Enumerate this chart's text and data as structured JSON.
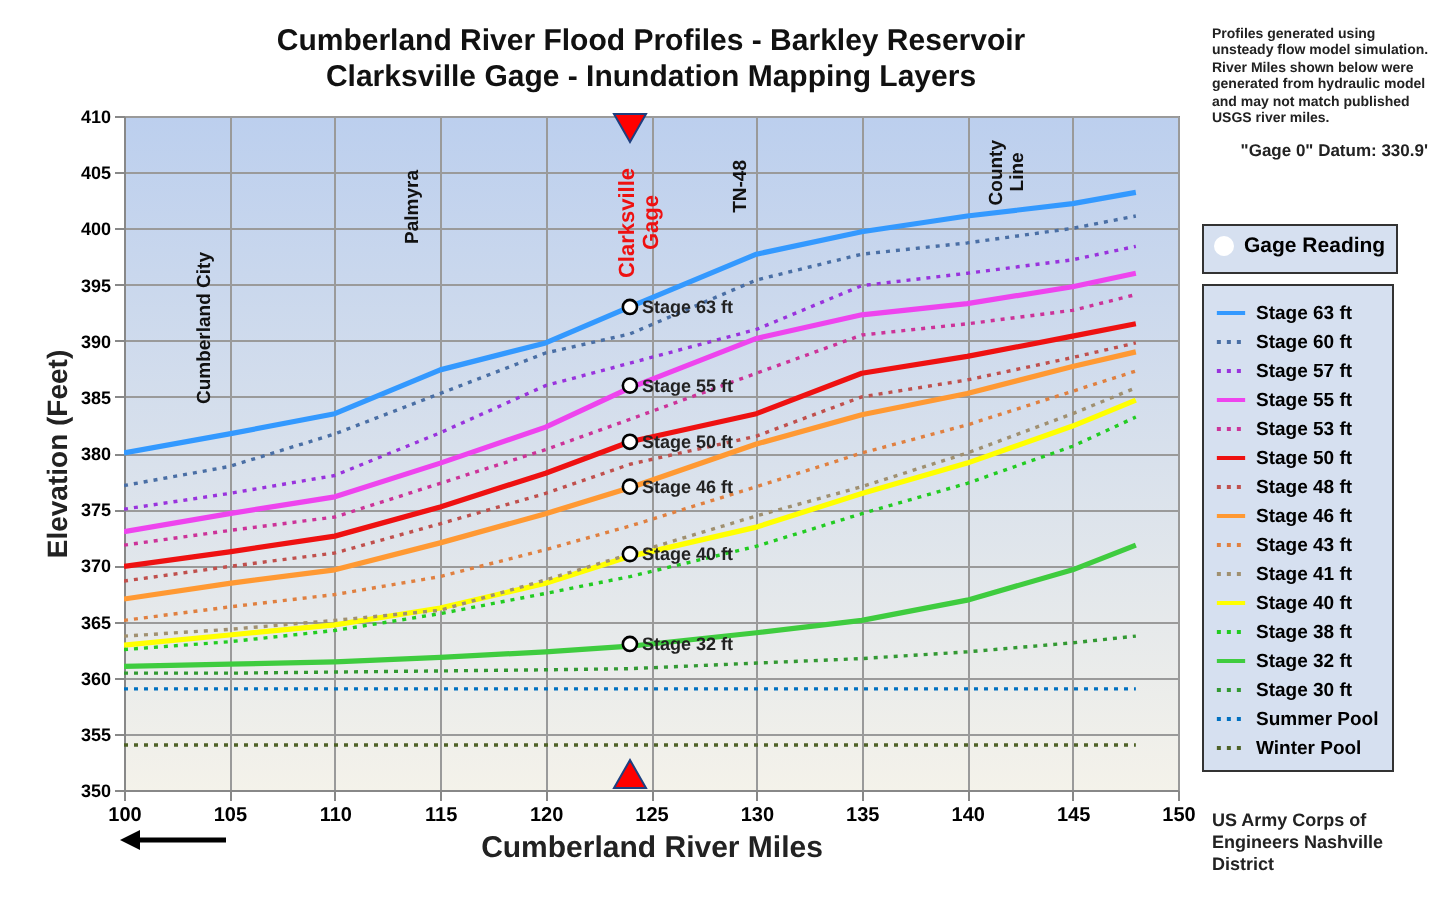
{
  "chart_data": {
    "type": "line",
    "title": "Cumberland River Flood Profiles - Barkley Reservoir",
    "subtitle": "Clarksville Gage - Inundation Mapping Layers",
    "xlabel": "Cumberland River Miles",
    "ylabel": "Elevation (Feet)",
    "x": [
      100,
      105,
      110,
      115,
      120,
      124,
      130,
      135,
      140,
      145,
      148
    ],
    "xlim": [
      100,
      150
    ],
    "xticks": [
      100,
      105,
      110,
      115,
      120,
      125,
      130,
      135,
      140,
      145,
      150
    ],
    "ylim": [
      350,
      410
    ],
    "yticks": [
      350,
      355,
      360,
      365,
      370,
      375,
      380,
      385,
      390,
      395,
      400,
      405,
      410
    ],
    "grid": true,
    "legend": "right",
    "series": [
      {
        "name": "Gage Reading",
        "type": "scatter",
        "marker": "circle",
        "color": "#000000",
        "x": [
          124,
          124,
          124,
          124,
          124,
          124
        ],
        "values": [
          393,
          386,
          381,
          377,
          371,
          363
        ],
        "value_labels": [
          "Stage 63 ft",
          "Stage 55 ft",
          "Stage 50 ft",
          "Stage 46 ft",
          "Stage 40 ft",
          "Stage 32 ft"
        ]
      },
      {
        "name": "Stage 63 ft",
        "color": "#3399ff",
        "line_style": "solid",
        "values": [
          380,
          381.7,
          383.5,
          387.4,
          389.8,
          393,
          397.7,
          399.7,
          401.1,
          402.2,
          403.2
        ]
      },
      {
        "name": "Stage 60 ft",
        "color": "#4a6fa5",
        "line_style": "dotted",
        "values": [
          377.1,
          378.8,
          381.7,
          385.3,
          388.9,
          390.6,
          395.4,
          397.7,
          398.7,
          400,
          401.1
        ]
      },
      {
        "name": "Stage 57 ft",
        "color": "#9933dd",
        "line_style": "dotted",
        "values": [
          375,
          376.4,
          378,
          381.8,
          386,
          388,
          391,
          394.9,
          396,
          397.2,
          398.4
        ]
      },
      {
        "name": "Stage 55 ft",
        "color": "#ee44ee",
        "line_style": "solid",
        "values": [
          373,
          374.6,
          376.1,
          379.1,
          382.3,
          385.8,
          390.2,
          392.3,
          393.3,
          394.8,
          396
        ]
      },
      {
        "name": "Stage 53 ft",
        "color": "#cc3399",
        "line_style": "dotted",
        "values": [
          371.8,
          373.1,
          374.3,
          377.3,
          380.3,
          383,
          387.1,
          390.5,
          391.5,
          392.7,
          394.1
        ]
      },
      {
        "name": "Stage 50 ft",
        "color": "#ee1111",
        "line_style": "solid",
        "values": [
          369.9,
          371.2,
          372.6,
          375.2,
          378.2,
          381,
          383.5,
          387.1,
          388.6,
          390.4,
          391.5
        ]
      },
      {
        "name": "Stage 48 ft",
        "color": "#c0504d",
        "line_style": "dotted",
        "values": [
          368.6,
          369.9,
          371.1,
          373.7,
          376.4,
          379,
          381.5,
          385,
          386.5,
          388.5,
          389.8
        ]
      },
      {
        "name": "Stage 46 ft",
        "color": "#ff9933",
        "line_style": "solid",
        "values": [
          367,
          368.4,
          369.6,
          372,
          374.6,
          376.9,
          380.8,
          383.4,
          385.3,
          387.7,
          389
        ]
      },
      {
        "name": "Stage 43 ft",
        "color": "#e08040",
        "line_style": "dotted",
        "values": [
          365.1,
          366.3,
          367.4,
          369,
          371.4,
          373.5,
          377,
          380,
          382.5,
          385.5,
          387.3
        ]
      },
      {
        "name": "Stage 41 ft",
        "color": "#a09070",
        "line_style": "dotted",
        "values": [
          363.7,
          364.3,
          365.1,
          366,
          368.7,
          371,
          374.4,
          377,
          380,
          383.5,
          385.8
        ]
      },
      {
        "name": "Stage 40 ft",
        "color": "#ffff00",
        "line_style": "solid",
        "values": [
          362.9,
          363.8,
          364.7,
          366.2,
          368.4,
          370.8,
          373.4,
          376.4,
          379.1,
          382.4,
          384.7
        ]
      },
      {
        "name": "Stage 38 ft",
        "color": "#22cc22",
        "line_style": "dotted",
        "values": [
          362.5,
          363.2,
          364.2,
          365.7,
          367.5,
          369,
          371.7,
          374.6,
          377.3,
          380.6,
          383.2
        ]
      },
      {
        "name": "Stage 32 ft",
        "color": "#3fcc3f",
        "line_style": "solid",
        "values": [
          361,
          361.2,
          361.4,
          361.8,
          362.3,
          362.8,
          364,
          365.1,
          366.9,
          369.6,
          371.8
        ]
      },
      {
        "name": "Stage 30 ft",
        "color": "#339933",
        "line_style": "dotted",
        "values": [
          360.4,
          360.4,
          360.5,
          360.6,
          360.7,
          360.8,
          361.3,
          361.7,
          362.3,
          363.1,
          363.7
        ]
      },
      {
        "name": "Summer Pool",
        "color": "#0070c0",
        "line_style": "dotted",
        "x": [
          100,
          148
        ],
        "values": [
          359,
          359
        ]
      },
      {
        "name": "Winter Pool",
        "color": "#4f6228",
        "line_style": "dotted",
        "x": [
          100,
          148
        ],
        "values": [
          354,
          354
        ]
      }
    ],
    "annotations": [
      "Clarksville\nGage",
      "Cumberland City",
      "Palmyra",
      "TN-48",
      "County\nLine",
      "Profiles generated using unsteady flow model simulation. River Miles shown below were generated from hydraulic model and may not match published USGS river miles.",
      "\"Gage 0\" Datum:  330.9'",
      "US Army Corps of Engineers Nashville District"
    ]
  }
}
